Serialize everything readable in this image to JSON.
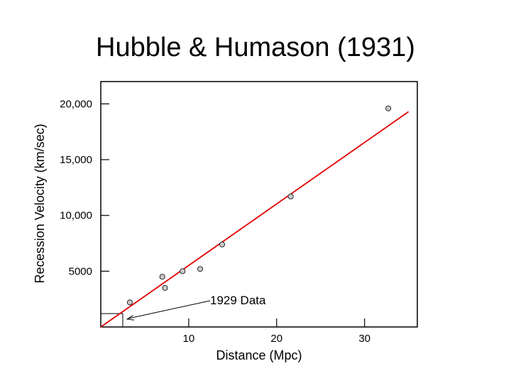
{
  "chart_data": {
    "type": "scatter",
    "title": "Hubble & Humason (1931)",
    "xlabel": "Distance (Mpc)",
    "ylabel": "Recession Velocity (km/sec)",
    "xlim": [
      0,
      36
    ],
    "ylim": [
      0,
      22000
    ],
    "x_ticks": [
      10,
      20,
      30
    ],
    "x_tick_labels": [
      "10",
      "20",
      "30"
    ],
    "y_ticks": [
      5000,
      10000,
      15000,
      20000
    ],
    "y_tick_labels": [
      "5000",
      "10,000",
      "15,000",
      "20,000"
    ],
    "grid": false,
    "series": [
      {
        "kind": "points",
        "points": [
          {
            "x": 3.3,
            "y": 2200
          },
          {
            "x": 7.0,
            "y": 4500
          },
          {
            "x": 7.3,
            "y": 3500
          },
          {
            "x": 9.3,
            "y": 5000
          },
          {
            "x": 11.3,
            "y": 5200
          },
          {
            "x": 13.8,
            "y": 7400
          },
          {
            "x": 21.6,
            "y": 11700
          },
          {
            "x": 32.7,
            "y": 19600
          }
        ],
        "color": "#c8c8c8"
      },
      {
        "kind": "fit-line",
        "points": [
          {
            "x": 0,
            "y": 0
          },
          {
            "x": 35,
            "y": 19300
          }
        ],
        "color": "#e00000"
      }
    ],
    "inset_box": {
      "x": [
        0,
        2.5
      ],
      "y": [
        0,
        1200
      ]
    },
    "annotation": {
      "text": "1929 Data",
      "target": {
        "x": 3.0,
        "y": 700
      }
    }
  }
}
